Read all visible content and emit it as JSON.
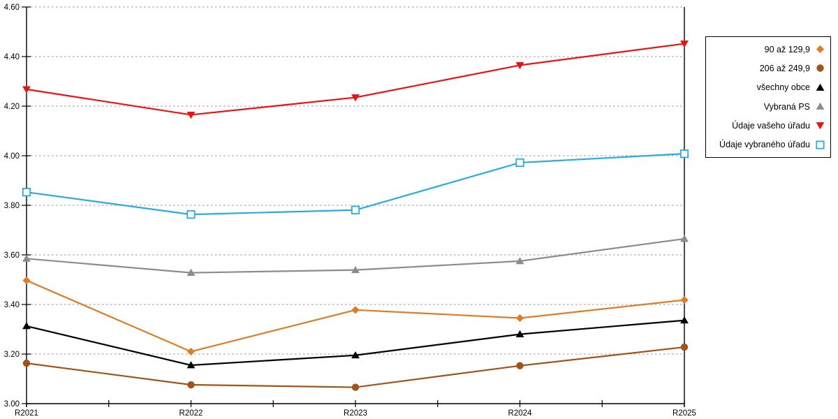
{
  "chart_data": {
    "type": "line",
    "title": "",
    "xlabel": "",
    "ylabel": "",
    "x_categories": [
      "R2021",
      "R2022",
      "R2023",
      "R2024",
      "R2025"
    ],
    "y_axis": {
      "min": 3.0,
      "max": 4.6,
      "step": 0.2,
      "tick_labels": [
        "3.00",
        "3.20",
        "3.40",
        "3.60",
        "3.80",
        "4.00",
        "4.20",
        "4.40",
        "4.60"
      ]
    },
    "grid": "horizontal-dotted",
    "legend_position": "outside-top-right",
    "series": [
      {
        "name": "90 až 129,9",
        "marker": "diamond",
        "color": "#E07B26",
        "values": [
          3.497,
          3.21,
          3.378,
          3.345,
          3.418
        ]
      },
      {
        "name": "206 až 249,9",
        "marker": "circle",
        "color": "#A0541A",
        "values": [
          3.163,
          3.076,
          3.066,
          3.153,
          3.228
        ]
      },
      {
        "name": "všechny obce",
        "marker": "triangle-up",
        "color": "#000000",
        "values": [
          3.313,
          3.155,
          3.195,
          3.28,
          3.336
        ]
      },
      {
        "name": "Vybraná PS",
        "marker": "triangle-up",
        "color": "#8C8C8C",
        "values": [
          3.585,
          3.528,
          3.539,
          3.575,
          3.665
        ]
      },
      {
        "name": "Údaje vašeho úřadu",
        "marker": "triangle-down",
        "color": "#EE1111",
        "values": [
          4.268,
          4.165,
          4.235,
          4.365,
          4.452
        ]
      },
      {
        "name": "Údaje vybraného úřadu",
        "marker": "square-open",
        "color": "#29ABE2",
        "values": [
          3.853,
          3.763,
          3.781,
          3.972,
          4.008
        ]
      }
    ],
    "colors": {
      "axis": "#000000",
      "grid": "#AAAAAA",
      "background": "#FFFFFF",
      "text": "#000000"
    }
  }
}
